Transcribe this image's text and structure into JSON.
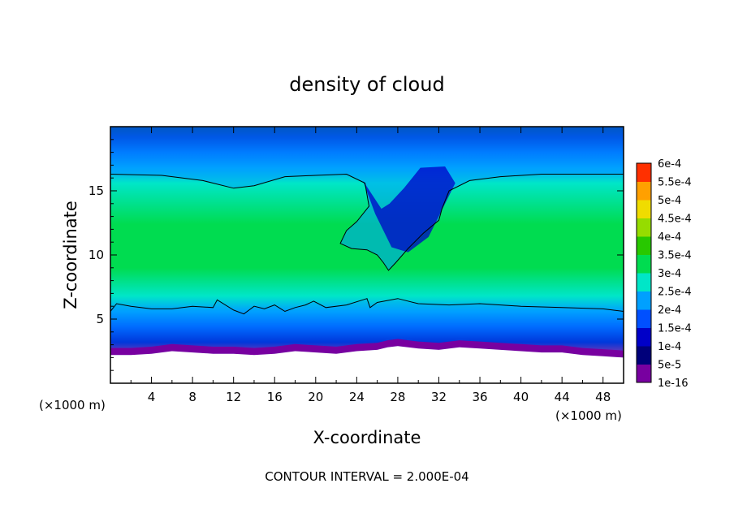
{
  "chart_data": {
    "type": "heatmap",
    "title": "density of cloud",
    "xlabel": "X-coordinate",
    "ylabel": "Z-coordinate",
    "x_unit": "(×1000 m)",
    "z_unit": "(×1000 m)",
    "xlim": [
      0,
      50
    ],
    "ylim": [
      0,
      20
    ],
    "x_ticks": [
      "4",
      "8",
      "12",
      "16",
      "20",
      "24",
      "28",
      "32",
      "36",
      "40",
      "44",
      "48"
    ],
    "y_ticks": [
      "5",
      "10",
      "15"
    ],
    "footer": "CONTOUR INTERVAL = 2.000E-04",
    "colorbar": {
      "levels": [
        "1e-16",
        "5e-5",
        "1e-4",
        "1.5e-4",
        "2e-4",
        "2.5e-4",
        "3e-4",
        "3.5e-4",
        "4e-4",
        "4.5e-4",
        "5e-4",
        "5.5e-4",
        "6e-4"
      ],
      "colors": [
        "#7800a0",
        "#00007a",
        "#0000c8",
        "#0050ff",
        "#00a0ff",
        "#00e6c8",
        "#00dc50",
        "#28c800",
        "#96dc00",
        "#f0dc00",
        "#ffa000",
        "#ff3000",
        "#ff7878"
      ]
    },
    "contour_level": "2.000E-04",
    "contour_upper": {
      "x": [
        0,
        5,
        9,
        12,
        14,
        17,
        20,
        23,
        24.8,
        25.2,
        24,
        23,
        22.4,
        23.5,
        25,
        26,
        26.6,
        27.1,
        27.8,
        29,
        30.5,
        32,
        32.3,
        33,
        35,
        38,
        42,
        46,
        50
      ],
      "z": [
        16.3,
        16.2,
        15.8,
        15.2,
        15.4,
        16.1,
        16.2,
        16.3,
        15.6,
        13.8,
        12.6,
        11.9,
        10.9,
        10.5,
        10.4,
        10.0,
        9.4,
        8.8,
        9.4,
        10.5,
        11.7,
        12.7,
        13.6,
        15.0,
        15.8,
        16.1,
        16.3,
        16.3,
        16.3
      ]
    },
    "contour_lower": {
      "x": [
        0,
        0.6,
        2,
        4,
        6,
        8,
        10,
        10.4,
        12,
        13,
        14,
        15,
        16,
        17,
        18,
        19,
        19.8,
        21,
        23,
        25,
        25.3,
        26,
        28,
        30,
        33,
        36,
        40,
        44,
        48,
        50
      ],
      "z": [
        5.6,
        6.2,
        6.0,
        5.8,
        5.8,
        6.0,
        5.9,
        6.5,
        5.7,
        5.4,
        6.0,
        5.8,
        6.1,
        5.6,
        5.9,
        6.1,
        6.4,
        5.9,
        6.1,
        6.6,
        5.9,
        6.3,
        6.6,
        6.2,
        6.1,
        6.2,
        6.0,
        5.9,
        5.8,
        5.6
      ]
    },
    "ground_top": {
      "x": [
        0,
        2,
        4,
        6,
        8,
        10,
        12,
        14,
        16,
        18,
        20,
        22,
        24,
        26,
        27,
        28,
        30,
        32,
        34,
        36,
        38,
        40,
        42,
        44,
        46,
        48,
        50
      ],
      "z": [
        2.2,
        2.2,
        2.3,
        2.5,
        2.4,
        2.3,
        2.3,
        2.2,
        2.3,
        2.5,
        2.4,
        2.3,
        2.5,
        2.6,
        2.8,
        2.9,
        2.7,
        2.6,
        2.8,
        2.7,
        2.6,
        2.5,
        2.4,
        2.4,
        2.2,
        2.1,
        2.0
      ]
    }
  }
}
